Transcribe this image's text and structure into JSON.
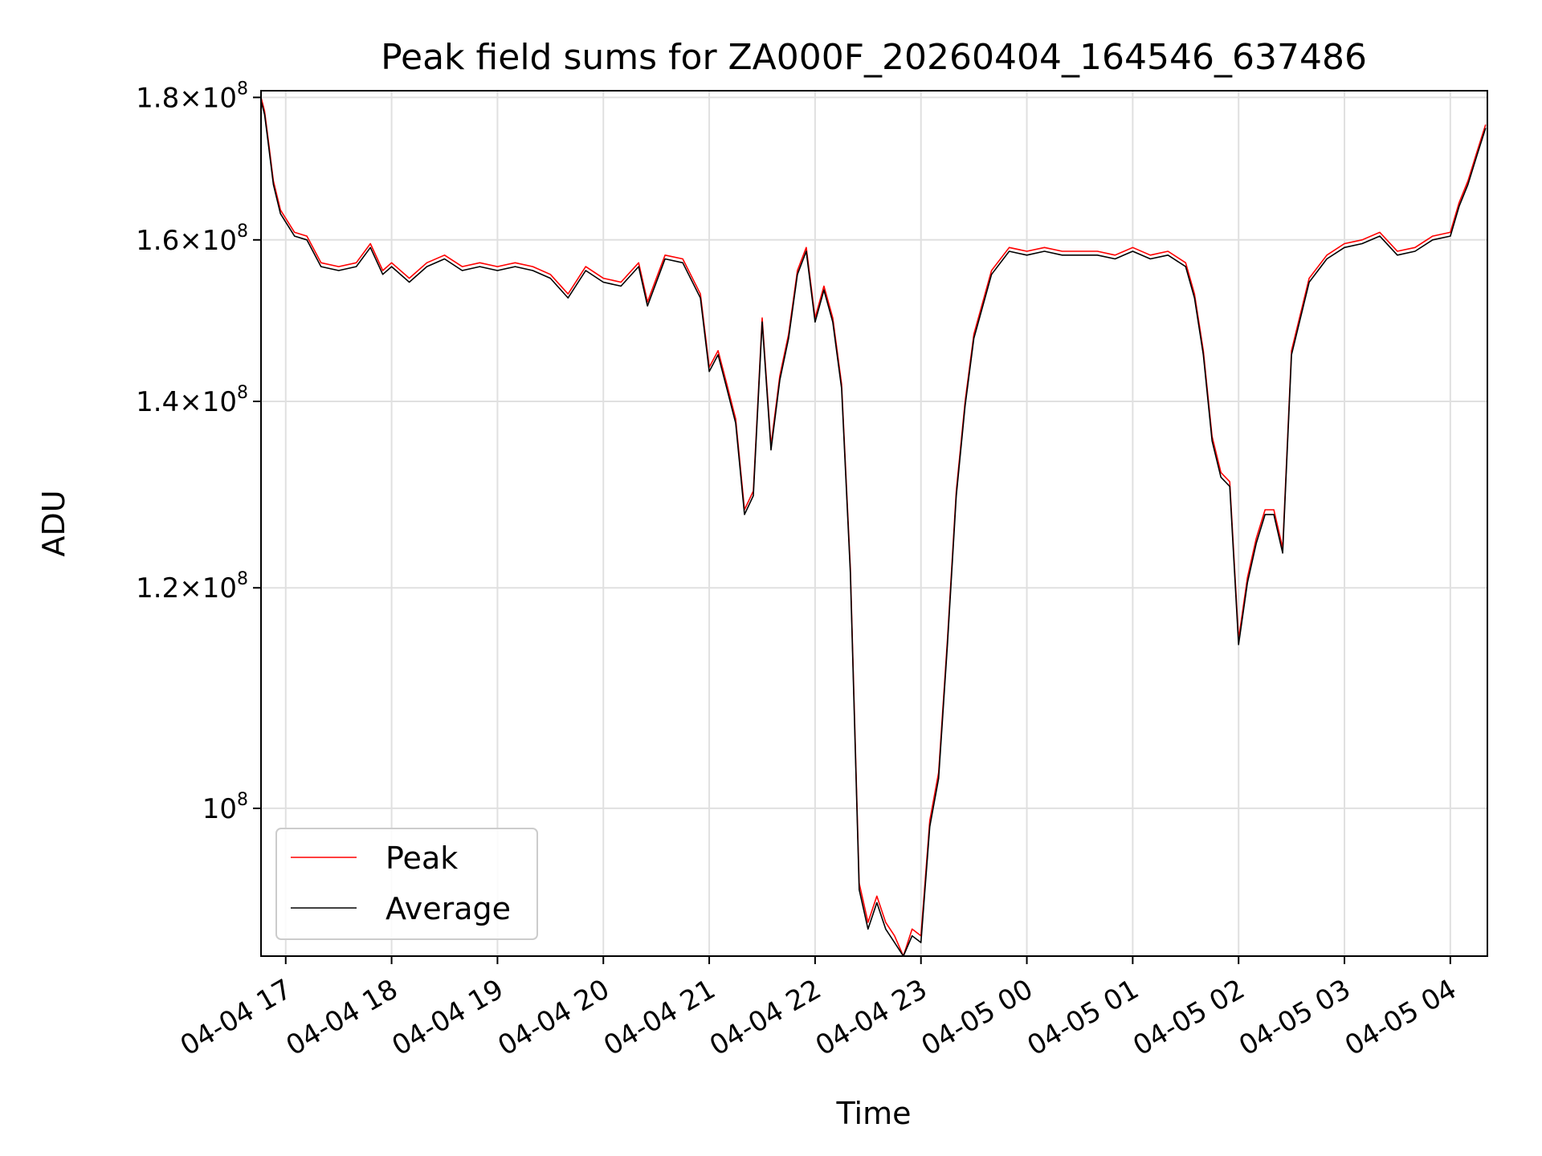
{
  "chart_data": {
    "type": "line",
    "title": "Peak field sums for ZA000F_20260404_164546_637486",
    "xlabel": "Time",
    "ylabel": "ADU",
    "y_scale": "log",
    "ylim": [
      88500000,
      181000000
    ],
    "xlim": [
      "2026-04-04 16:46",
      "2026-04-05 04:21"
    ],
    "grid": true,
    "legend_position": "lower-left",
    "x_ticks": [
      {
        "t": "2026-04-04 17:00",
        "label": "04-04 17"
      },
      {
        "t": "2026-04-04 18:00",
        "label": "04-04 18"
      },
      {
        "t": "2026-04-04 19:00",
        "label": "04-04 19"
      },
      {
        "t": "2026-04-04 20:00",
        "label": "04-04 20"
      },
      {
        "t": "2026-04-04 21:00",
        "label": "04-04 21"
      },
      {
        "t": "2026-04-04 22:00",
        "label": "04-04 22"
      },
      {
        "t": "2026-04-04 23:00",
        "label": "04-04 23"
      },
      {
        "t": "2026-04-05 00:00",
        "label": "04-05 00"
      },
      {
        "t": "2026-04-05 01:00",
        "label": "04-05 01"
      },
      {
        "t": "2026-04-05 02:00",
        "label": "04-05 02"
      },
      {
        "t": "2026-04-05 03:00",
        "label": "04-05 03"
      },
      {
        "t": "2026-04-05 04:00",
        "label": "04-05 04"
      }
    ],
    "y_ticks": [
      {
        "value": 100000000,
        "mantissa": "",
        "base": "10",
        "exp": "8"
      },
      {
        "value": 120000000,
        "mantissa": "1.2",
        "base": "10",
        "exp": "8"
      },
      {
        "value": 140000000,
        "mantissa": "1.4",
        "base": "10",
        "exp": "8"
      },
      {
        "value": 160000000,
        "mantissa": "1.6",
        "base": "10",
        "exp": "8"
      },
      {
        "value": 180000000,
        "mantissa": "1.8",
        "base": "10",
        "exp": "8"
      }
    ],
    "series": [
      {
        "name": "Peak",
        "color": "#ff0000",
        "offset": 500000,
        "x": [
          "2026-04-04 16:46",
          "2026-04-04 16:48",
          "2026-04-04 16:50",
          "2026-04-04 16:53",
          "2026-04-04 16:57",
          "2026-04-04 17:05",
          "2026-04-04 17:12",
          "2026-04-04 17:20",
          "2026-04-04 17:30",
          "2026-04-04 17:40",
          "2026-04-04 17:48",
          "2026-04-04 17:55",
          "2026-04-04 18:00",
          "2026-04-04 18:10",
          "2026-04-04 18:20",
          "2026-04-04 18:30",
          "2026-04-04 18:40",
          "2026-04-04 18:50",
          "2026-04-04 19:00",
          "2026-04-04 19:10",
          "2026-04-04 19:20",
          "2026-04-04 19:30",
          "2026-04-04 19:40",
          "2026-04-04 19:50",
          "2026-04-04 20:00",
          "2026-04-04 20:10",
          "2026-04-04 20:20",
          "2026-04-04 20:25",
          "2026-04-04 20:35",
          "2026-04-04 20:45",
          "2026-04-04 20:55",
          "2026-04-04 21:00",
          "2026-04-04 21:05",
          "2026-04-04 21:10",
          "2026-04-04 21:15",
          "2026-04-04 21:20",
          "2026-04-04 21:25",
          "2026-04-04 21:30",
          "2026-04-04 21:35",
          "2026-04-04 21:40",
          "2026-04-04 21:45",
          "2026-04-04 21:50",
          "2026-04-04 21:55",
          "2026-04-04 22:00",
          "2026-04-04 22:05",
          "2026-04-04 22:10",
          "2026-04-04 22:15",
          "2026-04-04 22:20",
          "2026-04-04 22:25",
          "2026-04-04 22:30",
          "2026-04-04 22:35",
          "2026-04-04 22:40",
          "2026-04-04 22:45",
          "2026-04-04 22:50",
          "2026-04-04 22:55",
          "2026-04-04 23:00",
          "2026-04-04 23:05",
          "2026-04-04 23:10",
          "2026-04-04 23:15",
          "2026-04-04 23:20",
          "2026-04-04 23:25",
          "2026-04-04 23:30",
          "2026-04-04 23:40",
          "2026-04-04 23:50",
          "2026-04-05 00:00",
          "2026-04-05 00:10",
          "2026-04-05 00:20",
          "2026-04-05 00:30",
          "2026-04-05 00:40",
          "2026-04-05 00:50",
          "2026-04-05 01:00",
          "2026-04-05 01:10",
          "2026-04-05 01:20",
          "2026-04-05 01:30",
          "2026-04-05 01:35",
          "2026-04-05 01:40",
          "2026-04-05 01:45",
          "2026-04-05 01:50",
          "2026-04-05 01:55",
          "2026-04-05 02:00",
          "2026-04-05 02:05",
          "2026-04-05 02:10",
          "2026-04-05 02:15",
          "2026-04-05 02:20",
          "2026-04-05 02:25",
          "2026-04-05 02:30",
          "2026-04-05 02:40",
          "2026-04-05 02:50",
          "2026-04-05 03:00",
          "2026-04-05 03:10",
          "2026-04-05 03:20",
          "2026-04-05 03:30",
          "2026-04-05 03:40",
          "2026-04-05 03:50",
          "2026-04-05 04:00",
          "2026-04-05 04:05",
          "2026-04-05 04:10",
          "2026-04-05 04:15",
          "2026-04-05 04:20"
        ],
        "values": [
          180000000,
          178000000,
          174000000,
          168000000,
          164000000,
          161000000,
          160500000,
          157000000,
          156500000,
          157000000,
          159500000,
          156000000,
          157000000,
          155000000,
          157000000,
          158000000,
          156500000,
          157000000,
          156500000,
          157000000,
          156500000,
          155500000,
          153000000,
          156500000,
          155000000,
          154500000,
          157000000,
          152000000,
          158000000,
          157500000,
          153000000,
          144000000,
          146000000,
          142000000,
          138000000,
          128000000,
          130000000,
          150000000,
          135000000,
          143000000,
          148000000,
          156000000,
          159000000,
          150000000,
          154000000,
          150000000,
          142000000,
          122000000,
          94000000,
          91000000,
          93000000,
          91000000,
          90000000,
          88500000,
          90500000,
          90000000,
          99000000,
          103000000,
          115000000,
          130000000,
          140000000,
          148000000,
          156000000,
          159000000,
          158500000,
          159000000,
          158500000,
          158500000,
          158500000,
          158000000,
          159000000,
          158000000,
          158500000,
          157000000,
          153000000,
          146000000,
          136000000,
          132000000,
          131000000,
          115000000,
          121000000,
          125000000,
          128000000,
          128000000,
          124000000,
          146000000,
          155000000,
          158000000,
          159500000,
          160000000,
          161000000,
          158500000,
          159000000,
          160500000,
          161000000,
          165000000,
          168000000,
          172000000,
          176000000
        ]
      },
      {
        "name": "Average",
        "color": "#000000",
        "offset": 0,
        "x": [
          "2026-04-04 16:46",
          "2026-04-04 16:48",
          "2026-04-04 16:50",
          "2026-04-04 16:53",
          "2026-04-04 16:57",
          "2026-04-04 17:05",
          "2026-04-04 17:12",
          "2026-04-04 17:20",
          "2026-04-04 17:30",
          "2026-04-04 17:40",
          "2026-04-04 17:48",
          "2026-04-04 17:55",
          "2026-04-04 18:00",
          "2026-04-04 18:10",
          "2026-04-04 18:20",
          "2026-04-04 18:30",
          "2026-04-04 18:40",
          "2026-04-04 18:50",
          "2026-04-04 19:00",
          "2026-04-04 19:10",
          "2026-04-04 19:20",
          "2026-04-04 19:30",
          "2026-04-04 19:40",
          "2026-04-04 19:50",
          "2026-04-04 20:00",
          "2026-04-04 20:10",
          "2026-04-04 20:20",
          "2026-04-04 20:25",
          "2026-04-04 20:35",
          "2026-04-04 20:45",
          "2026-04-04 20:55",
          "2026-04-04 21:00",
          "2026-04-04 21:05",
          "2026-04-04 21:10",
          "2026-04-04 21:15",
          "2026-04-04 21:20",
          "2026-04-04 21:25",
          "2026-04-04 21:30",
          "2026-04-04 21:35",
          "2026-04-04 21:40",
          "2026-04-04 21:45",
          "2026-04-04 21:50",
          "2026-04-04 21:55",
          "2026-04-04 22:00",
          "2026-04-04 22:05",
          "2026-04-04 22:10",
          "2026-04-04 22:15",
          "2026-04-04 22:20",
          "2026-04-04 22:25",
          "2026-04-04 22:30",
          "2026-04-04 22:35",
          "2026-04-04 22:40",
          "2026-04-04 22:45",
          "2026-04-04 22:50",
          "2026-04-04 22:55",
          "2026-04-04 23:00",
          "2026-04-04 23:05",
          "2026-04-04 23:10",
          "2026-04-04 23:15",
          "2026-04-04 23:20",
          "2026-04-04 23:25",
          "2026-04-04 23:30",
          "2026-04-04 23:40",
          "2026-04-04 23:50",
          "2026-04-05 00:00",
          "2026-04-05 00:10",
          "2026-04-05 00:20",
          "2026-04-05 00:30",
          "2026-04-05 00:40",
          "2026-04-05 00:50",
          "2026-04-05 01:00",
          "2026-04-05 01:10",
          "2026-04-05 01:20",
          "2026-04-05 01:30",
          "2026-04-05 01:35",
          "2026-04-05 01:40",
          "2026-04-05 01:45",
          "2026-04-05 01:50",
          "2026-04-05 01:55",
          "2026-04-05 02:00",
          "2026-04-05 02:05",
          "2026-04-05 02:10",
          "2026-04-05 02:15",
          "2026-04-05 02:20",
          "2026-04-05 02:25",
          "2026-04-05 02:30",
          "2026-04-05 02:40",
          "2026-04-05 02:50",
          "2026-04-05 03:00",
          "2026-04-05 03:10",
          "2026-04-05 03:20",
          "2026-04-05 03:30",
          "2026-04-05 03:40",
          "2026-04-05 03:50",
          "2026-04-05 04:00",
          "2026-04-05 04:05",
          "2026-04-05 04:10",
          "2026-04-05 04:15",
          "2026-04-05 04:20"
        ],
        "values": [
          179500000,
          177500000,
          173500000,
          167500000,
          163500000,
          160500000,
          160000000,
          156500000,
          156000000,
          156500000,
          159000000,
          155500000,
          156500000,
          154500000,
          156500000,
          157500000,
          156000000,
          156500000,
          156000000,
          156500000,
          156000000,
          155000000,
          152500000,
          156000000,
          154500000,
          154000000,
          156500000,
          151500000,
          157500000,
          157000000,
          152500000,
          143500000,
          145500000,
          141500000,
          137500000,
          127500000,
          129500000,
          149500000,
          134500000,
          142500000,
          147500000,
          155500000,
          158500000,
          149500000,
          153500000,
          149500000,
          141500000,
          121500000,
          93500000,
          90500000,
          92500000,
          90500000,
          89500000,
          88300000,
          90000000,
          89500000,
          98500000,
          102500000,
          114500000,
          129500000,
          139500000,
          147500000,
          155500000,
          158500000,
          158000000,
          158500000,
          158000000,
          158000000,
          158000000,
          157500000,
          158500000,
          157500000,
          158000000,
          156500000,
          152500000,
          145500000,
          135500000,
          131500000,
          130500000,
          114500000,
          120500000,
          124500000,
          127500000,
          127500000,
          123500000,
          145500000,
          154500000,
          157500000,
          159000000,
          159500000,
          160500000,
          158000000,
          158500000,
          160000000,
          160500000,
          164500000,
          167500000,
          171500000,
          175500000
        ]
      }
    ]
  }
}
